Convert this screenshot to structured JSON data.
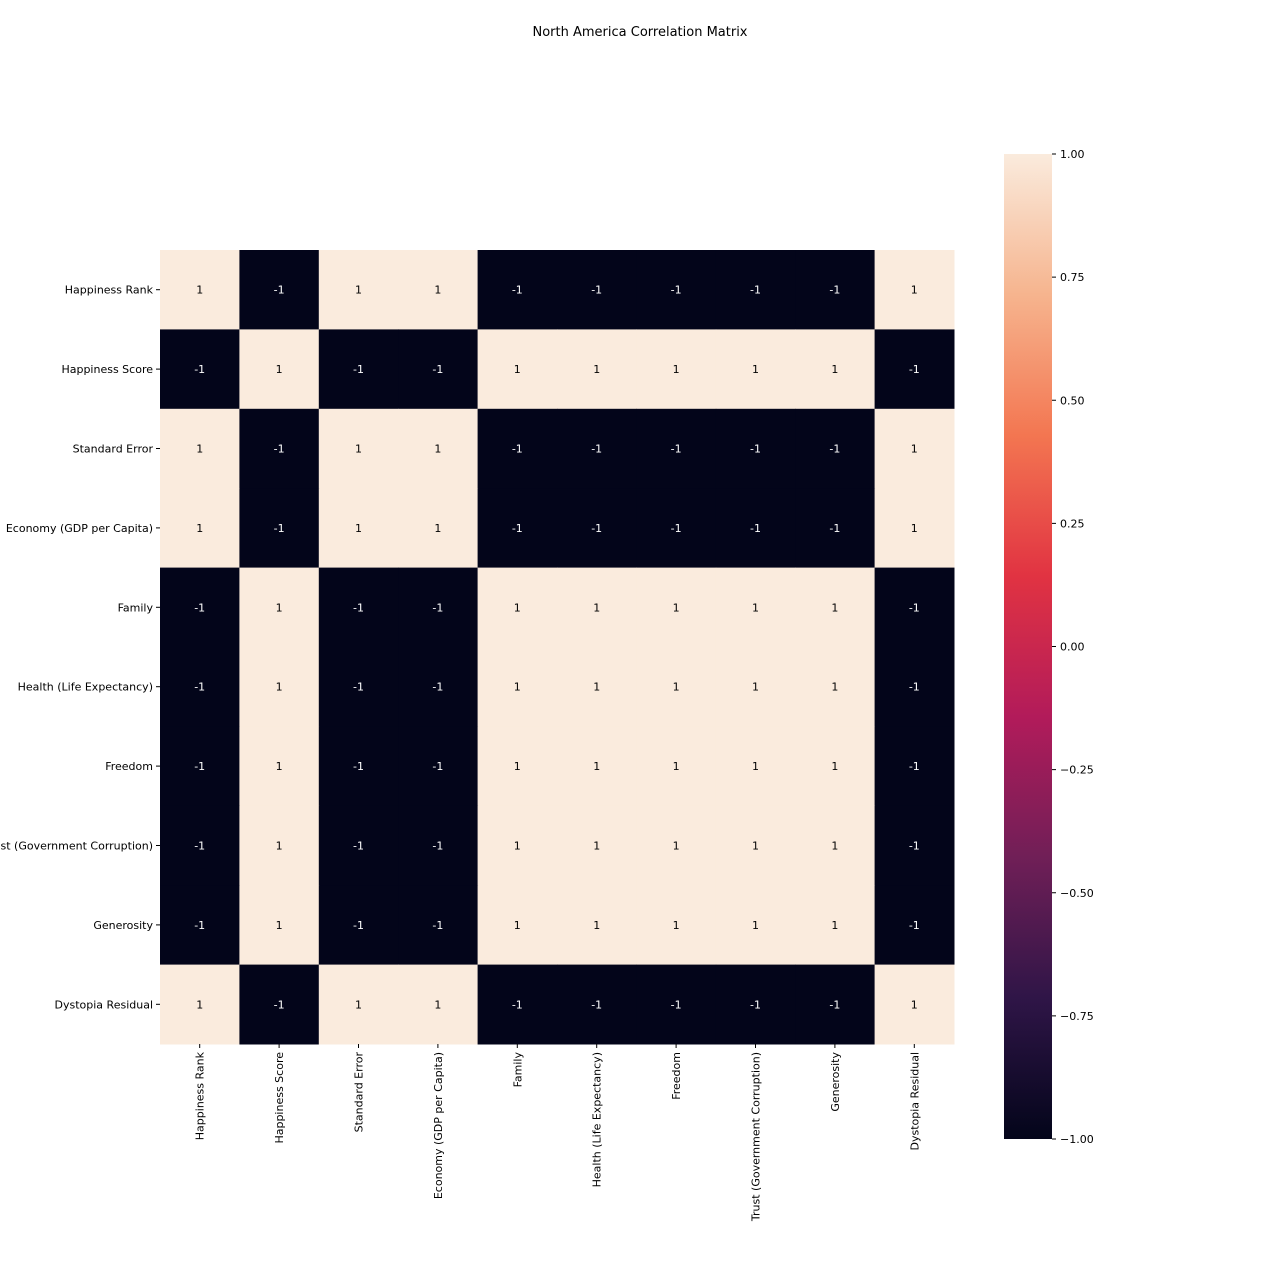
{
  "chart_data": {
    "type": "heatmap",
    "title": "North America Correlation Matrix",
    "xlabel": "",
    "ylabel": "",
    "variables": [
      "Happiness Rank",
      "Happiness Score",
      "Standard Error",
      "Economy (GDP per Capita)",
      "Family",
      "Health (Life Expectancy)",
      "Freedom",
      "Trust (Government Corruption)",
      "Generosity",
      "Dystopia Residual"
    ],
    "matrix": [
      [
        1,
        -1,
        1,
        1,
        -1,
        -1,
        -1,
        -1,
        -1,
        1
      ],
      [
        -1,
        1,
        -1,
        -1,
        1,
        1,
        1,
        1,
        1,
        -1
      ],
      [
        1,
        -1,
        1,
        1,
        -1,
        -1,
        -1,
        -1,
        -1,
        1
      ],
      [
        1,
        -1,
        1,
        1,
        -1,
        -1,
        -1,
        -1,
        -1,
        1
      ],
      [
        -1,
        1,
        -1,
        -1,
        1,
        1,
        1,
        1,
        1,
        -1
      ],
      [
        -1,
        1,
        -1,
        -1,
        1,
        1,
        1,
        1,
        1,
        -1
      ],
      [
        -1,
        1,
        -1,
        -1,
        1,
        1,
        1,
        1,
        1,
        -1
      ],
      [
        -1,
        1,
        -1,
        -1,
        1,
        1,
        1,
        1,
        1,
        -1
      ],
      [
        -1,
        1,
        -1,
        -1,
        1,
        1,
        1,
        1,
        1,
        -1
      ],
      [
        1,
        -1,
        1,
        1,
        -1,
        -1,
        -1,
        -1,
        -1,
        1
      ]
    ],
    "colorbar": {
      "range": [
        -1,
        1
      ],
      "ticks": [
        "1.00",
        "0.75",
        "0.50",
        "0.25",
        "0.00",
        "−0.25",
        "−0.50",
        "−0.75",
        "−1.00"
      ],
      "tick_values": [
        1,
        0.75,
        0.5,
        0.25,
        0,
        -0.25,
        -0.5,
        -0.75,
        -1
      ]
    },
    "colors": {
      "low": "#03051a",
      "high": "#faebdd",
      "colormap_stops": [
        "#03051a",
        "#2f1547",
        "#701f57",
        "#b21b5a",
        "#e13342",
        "#f37651",
        "#f6b48e",
        "#faebdd"
      ],
      "annotation_on_dark": "#ffffff",
      "annotation_on_light": "#000000"
    },
    "grid": false,
    "legend": "colorbar-right"
  }
}
